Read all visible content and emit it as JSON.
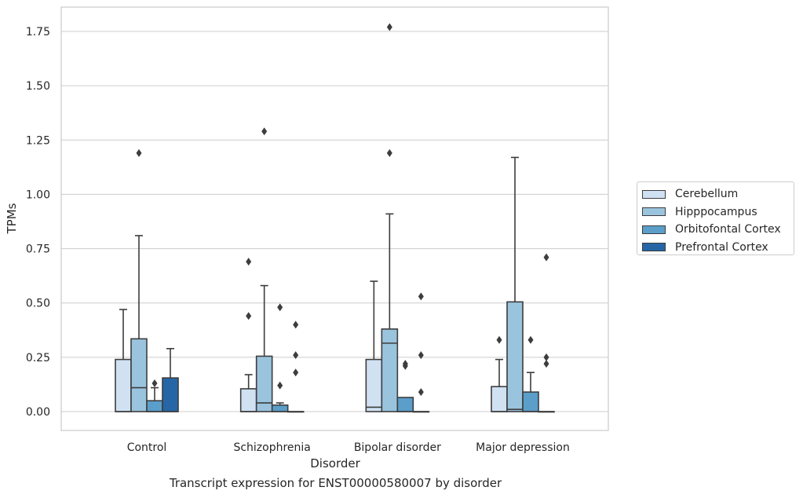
{
  "chart_data": {
    "type": "box",
    "title": "Transcript expression for ENST00000580007 by disorder",
    "xlabel": "Disorder",
    "ylabel": "TPMs",
    "ylim": [
      -0.09,
      1.86
    ],
    "yticks": [
      "0.00",
      "0.25",
      "0.50",
      "0.75",
      "1.00",
      "1.25",
      "1.50",
      "1.75"
    ],
    "grid": true,
    "legend_position": "right",
    "categories": [
      "Control",
      "Schizophrenia",
      "Bipolar disorder",
      "Major depression"
    ],
    "series": [
      {
        "name": "Cerebellum",
        "color": "#d0e1f2",
        "boxes": [
          {
            "q1": 0.0,
            "median": 0.0,
            "q3": 0.24,
            "whisker_low": 0.0,
            "whisker_high": 0.47,
            "outliers": []
          },
          {
            "q1": 0.0,
            "median": 0.0,
            "q3": 0.105,
            "whisker_low": 0.0,
            "whisker_high": 0.17,
            "outliers": [
              0.44,
              0.69
            ]
          },
          {
            "q1": 0.0,
            "median": 0.02,
            "q3": 0.24,
            "whisker_low": 0.0,
            "whisker_high": 0.6,
            "outliers": []
          },
          {
            "q1": 0.0,
            "median": 0.0,
            "q3": 0.115,
            "whisker_low": 0.0,
            "whisker_high": 0.24,
            "outliers": [
              0.33
            ]
          }
        ]
      },
      {
        "name": "Hipppocampus",
        "color": "#9ac4de",
        "boxes": [
          {
            "q1": 0.0,
            "median": 0.11,
            "q3": 0.335,
            "whisker_low": 0.0,
            "whisker_high": 0.81,
            "outliers": [
              1.19
            ]
          },
          {
            "q1": 0.0,
            "median": 0.04,
            "q3": 0.255,
            "whisker_low": 0.0,
            "whisker_high": 0.58,
            "outliers": [
              1.29
            ]
          },
          {
            "q1": 0.0,
            "median": 0.315,
            "q3": 0.38,
            "whisker_low": 0.0,
            "whisker_high": 0.91,
            "outliers": [
              1.19,
              1.77
            ]
          },
          {
            "q1": 0.0,
            "median": 0.01,
            "q3": 0.505,
            "whisker_low": 0.0,
            "whisker_high": 1.17,
            "outliers": []
          }
        ]
      },
      {
        "name": "Orbitofontal Cortex",
        "color": "#5a9ec9",
        "boxes": [
          {
            "q1": 0.0,
            "median": 0.0,
            "q3": 0.05,
            "whisker_low": 0.0,
            "whisker_high": 0.11,
            "outliers": [
              0.13
            ]
          },
          {
            "q1": 0.0,
            "median": 0.0,
            "q3": 0.03,
            "whisker_low": 0.0,
            "whisker_high": 0.04,
            "outliers": [
              0.12,
              0.48
            ]
          },
          {
            "q1": 0.0,
            "median": 0.0,
            "q3": 0.065,
            "whisker_low": 0.0,
            "whisker_high": 0.065,
            "outliers": [
              0.21,
              0.22
            ]
          },
          {
            "q1": 0.0,
            "median": 0.0,
            "q3": 0.09,
            "whisker_low": 0.0,
            "whisker_high": 0.18,
            "outliers": [
              0.33
            ]
          }
        ]
      },
      {
        "name": "Prefrontal Cortex",
        "color": "#2666a6",
        "boxes": [
          {
            "q1": 0.0,
            "median": 0.0,
            "q3": 0.155,
            "whisker_low": 0.0,
            "whisker_high": 0.29,
            "outliers": []
          },
          {
            "q1": 0.0,
            "median": 0.0,
            "q3": 0.0,
            "whisker_low": 0.0,
            "whisker_high": 0.0,
            "outliers": [
              0.18,
              0.26,
              0.4
            ]
          },
          {
            "q1": 0.0,
            "median": 0.0,
            "q3": 0.0,
            "whisker_low": 0.0,
            "whisker_high": 0.0,
            "outliers": [
              0.09,
              0.26,
              0.53
            ]
          },
          {
            "q1": 0.0,
            "median": 0.0,
            "q3": 0.0,
            "whisker_low": 0.0,
            "whisker_high": 0.0,
            "outliers": [
              0.22,
              0.25,
              0.71
            ]
          }
        ]
      }
    ]
  }
}
